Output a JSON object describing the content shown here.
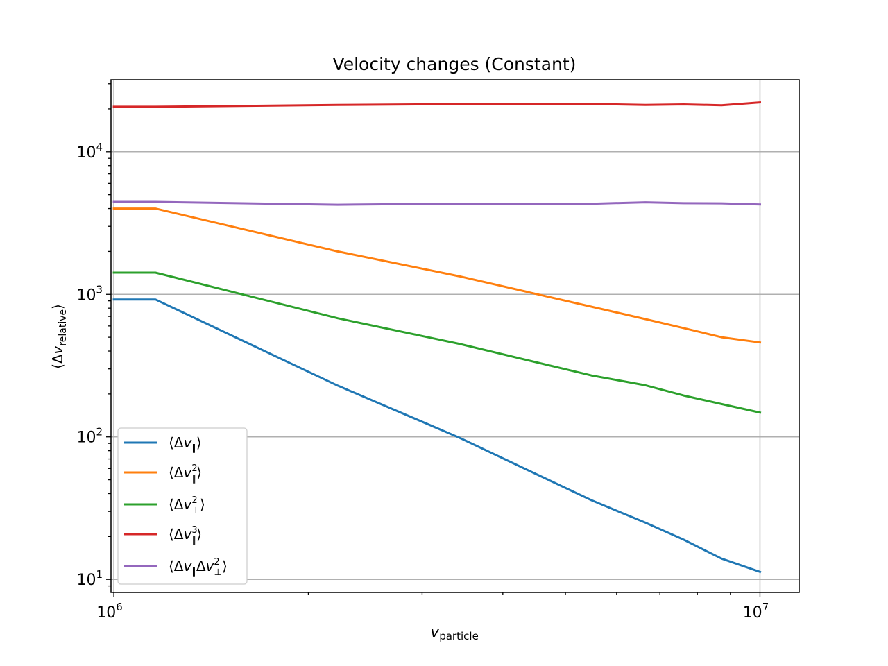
{
  "chart_data": {
    "type": "line",
    "title": "Velocity changes (Constant)",
    "xlabel": "v_particle",
    "ylabel": "⟨Δv_relative⟩",
    "xscale": "log",
    "yscale": "log",
    "xlim": [
      990000,
      11500000
    ],
    "ylim": [
      8.1,
      32000
    ],
    "grid": true,
    "legend_position": "lower-left",
    "x_ticks": [
      {
        "value": 1000000,
        "base": "10",
        "exp": "6"
      },
      {
        "value": 10000000,
        "base": "10",
        "exp": "7"
      }
    ],
    "y_ticks": [
      {
        "value": 10,
        "base": "10",
        "exp": "1"
      },
      {
        "value": 100,
        "base": "10",
        "exp": "2"
      },
      {
        "value": 1000,
        "base": "10",
        "exp": "3"
      },
      {
        "value": 10000,
        "base": "10",
        "exp": "4"
      }
    ],
    "series": [
      {
        "name": "⟨Δv∥⟩",
        "color": "#1f77b4",
        "x": [
          1000000,
          1160000,
          2220000,
          3420000,
          5480000,
          6650000,
          7620000,
          8720000,
          10000000
        ],
        "values": [
          920,
          920,
          229,
          99,
          36,
          25,
          19,
          14,
          11.3
        ]
      },
      {
        "name": "⟨Δv∥²⟩",
        "color": "#ff7f0e",
        "x": [
          1000000,
          1160000,
          2220000,
          3420000,
          5480000,
          6650000,
          7620000,
          8720000,
          10000000
        ],
        "values": [
          4000,
          4000,
          2000,
          1340,
          820,
          670,
          580,
          500,
          460
        ]
      },
      {
        "name": "⟨Δv⊥²⟩",
        "color": "#2ca02c",
        "x": [
          1000000,
          1160000,
          2220000,
          3420000,
          5480000,
          6650000,
          7620000,
          8720000,
          10000000
        ],
        "values": [
          1420,
          1420,
          680,
          450,
          270,
          230,
          195,
          170,
          148
        ]
      },
      {
        "name": "⟨Δv∥³⟩",
        "color": "#d62728",
        "x": [
          1000000,
          1160000,
          2220000,
          3420000,
          5480000,
          6650000,
          7620000,
          8720000,
          10000000
        ],
        "values": [
          20700,
          20700,
          21300,
          21600,
          21700,
          21300,
          21500,
          21200,
          22200
        ]
      },
      {
        "name": "⟨Δv∥Δv⊥²⟩",
        "color": "#9467bd",
        "x": [
          1000000,
          1160000,
          2220000,
          3420000,
          5480000,
          6650000,
          7620000,
          8720000,
          10000000
        ],
        "values": [
          4450,
          4450,
          4250,
          4330,
          4320,
          4420,
          4360,
          4350,
          4270
        ]
      }
    ]
  }
}
